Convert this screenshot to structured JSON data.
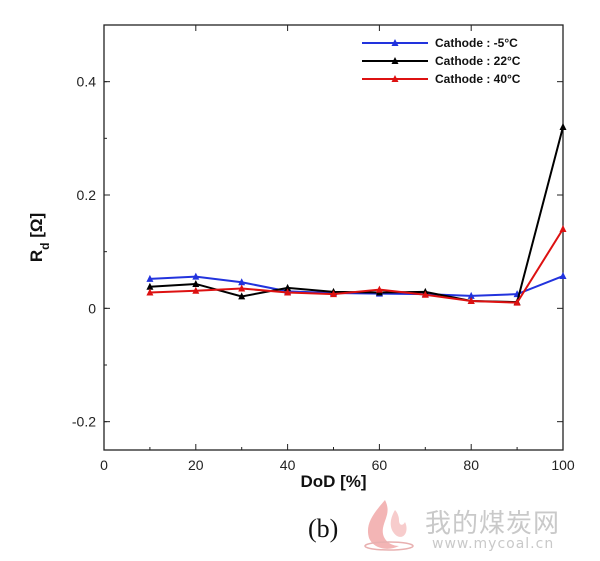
{
  "chart_data": {
    "type": "line",
    "xlabel": "DoD [%]",
    "ylabel_main": "R",
    "ylabel_sub": "d",
    "ylabel_unit": " [Ω]",
    "xlim": [
      0,
      100
    ],
    "ylim": [
      -0.25,
      0.5
    ],
    "xticks": [
      "0",
      "20",
      "40",
      "60",
      "80",
      "100"
    ],
    "yticks": [
      "-0.2",
      "0",
      "0.2",
      "0.4"
    ],
    "legend_position": "top-right",
    "x": [
      10,
      20,
      30,
      40,
      50,
      60,
      70,
      80,
      90,
      100
    ],
    "series": [
      {
        "name": "Cathode : -5°C",
        "color": "#2233dd",
        "values": [
          0.052,
          0.056,
          0.046,
          0.03,
          0.027,
          0.026,
          0.025,
          0.022,
          0.025,
          0.057
        ]
      },
      {
        "name": "Cathode : 22°C",
        "color": "#000000",
        "values": [
          0.038,
          0.043,
          0.021,
          0.036,
          0.029,
          0.028,
          0.029,
          0.013,
          0.011,
          0.32
        ]
      },
      {
        "name": "Cathode : 40°C",
        "color": "#dd1111",
        "values": [
          0.028,
          0.031,
          0.035,
          0.028,
          0.025,
          0.033,
          0.024,
          0.013,
          0.01,
          0.14
        ]
      }
    ]
  },
  "caption": "(b)",
  "watermark": {
    "text": "我的煤炭网",
    "url": "www.mycoal.cn",
    "logo_icon": "flame-logo-icon"
  }
}
